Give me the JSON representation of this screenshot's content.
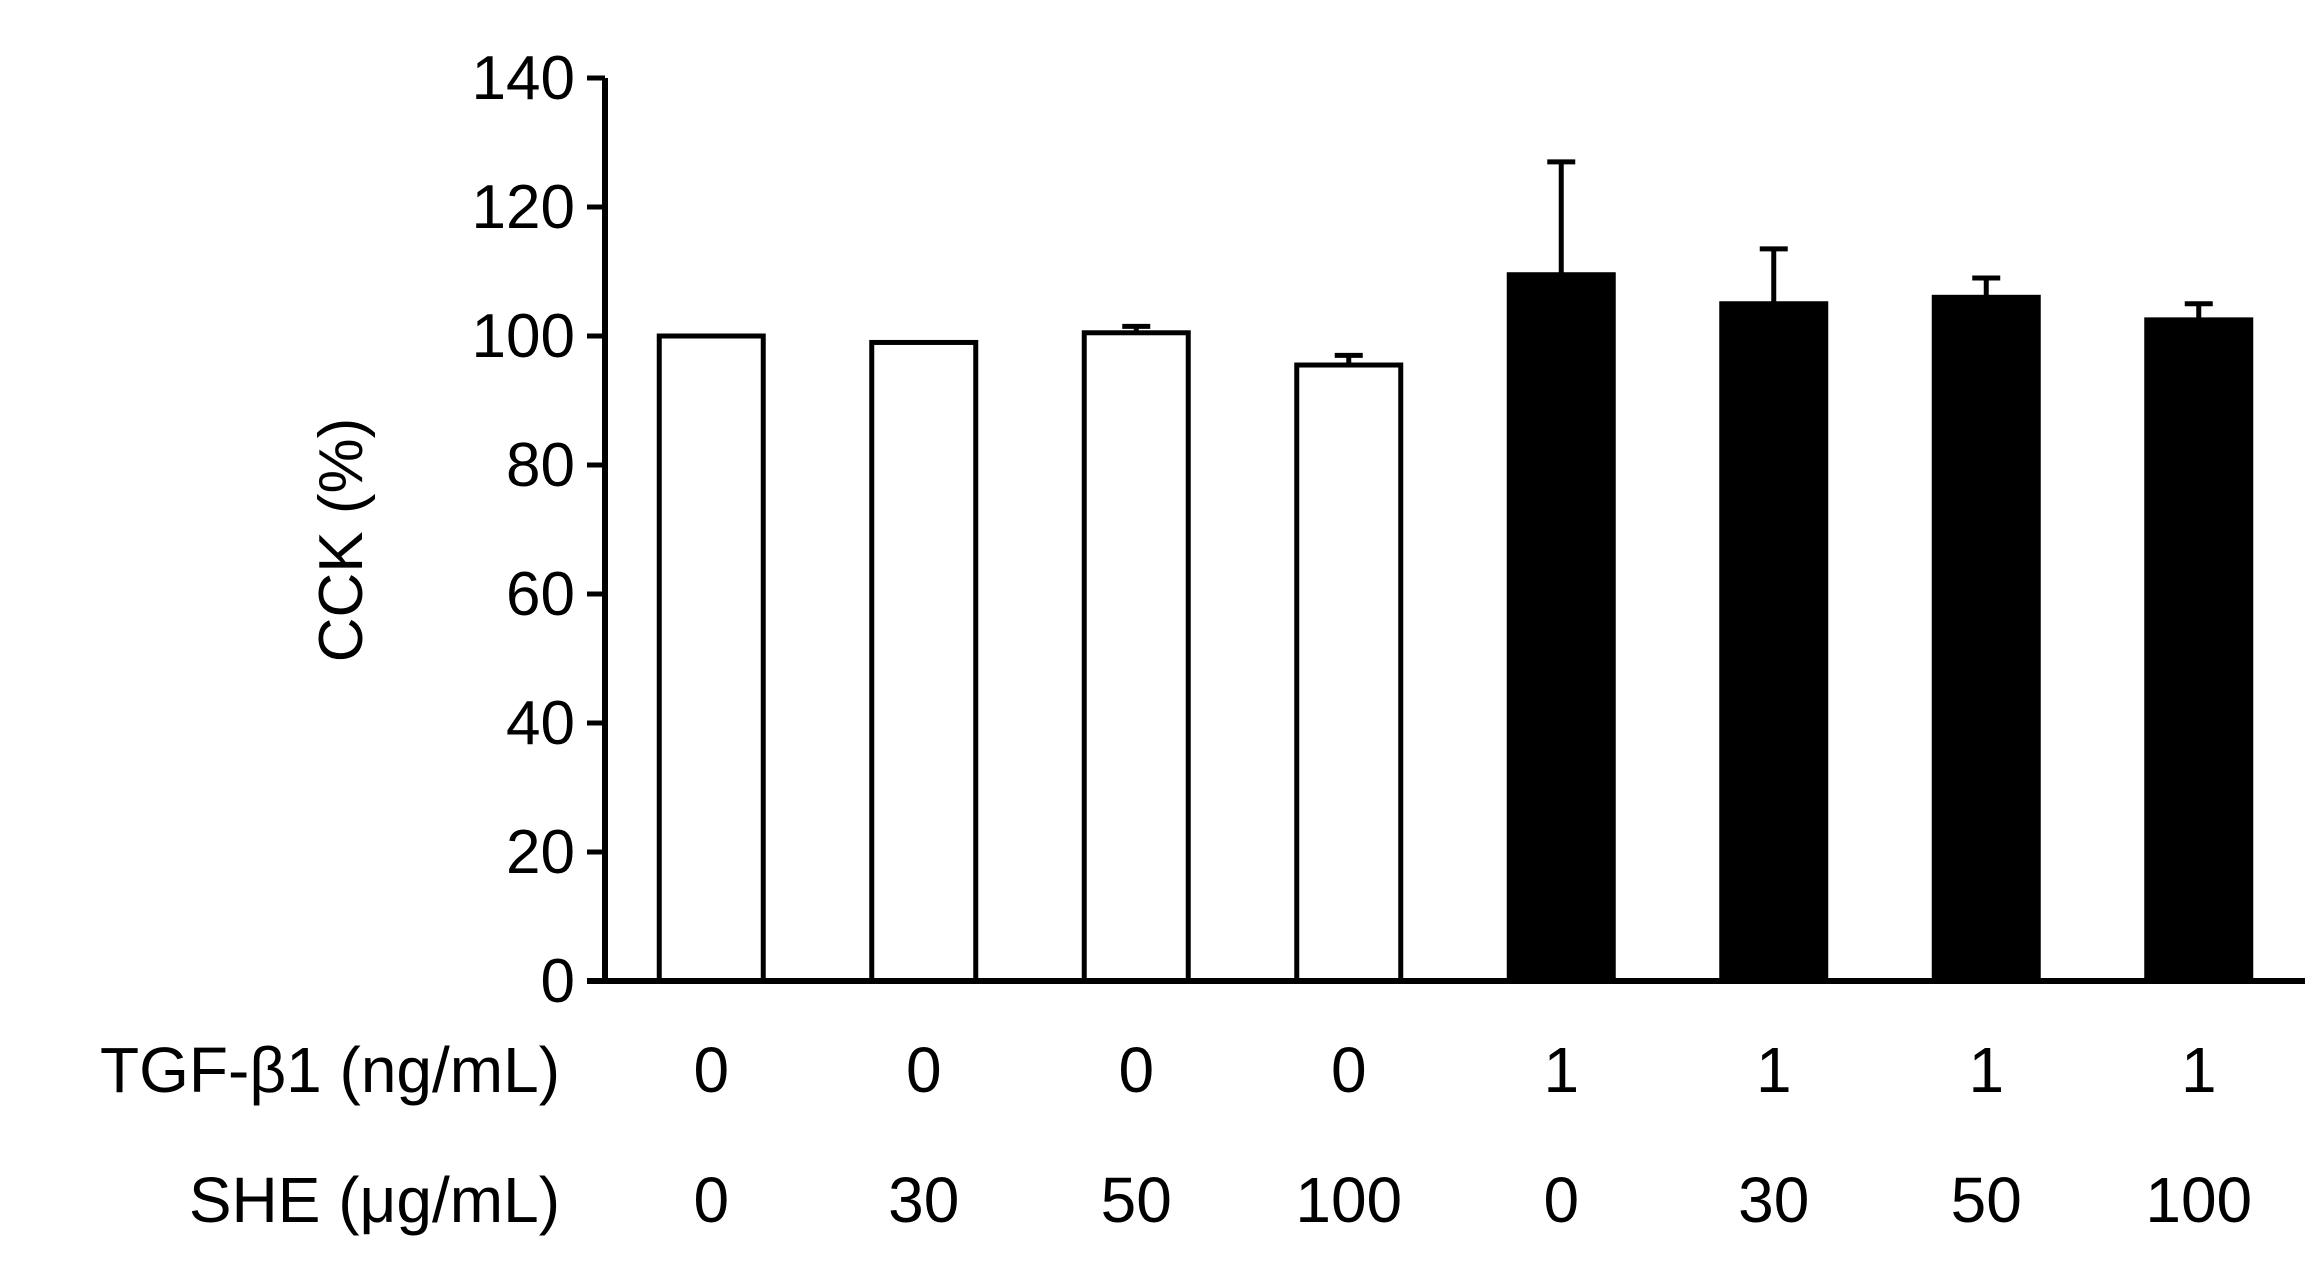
{
  "chart_data": {
    "type": "bar",
    "ylabel": "CCK (%)",
    "ylim": [
      0,
      140
    ],
    "yticks": [
      "0",
      "20",
      "40",
      "60",
      "80",
      "100",
      "120",
      "140"
    ],
    "grid": false,
    "legend": "none",
    "values": [
      100,
      99,
      100.5,
      95.5,
      109.5,
      105,
      106,
      102.5
    ],
    "errors": [
      0,
      0,
      1,
      1.5,
      17.5,
      8.5,
      3,
      2.5
    ],
    "fills": [
      "#ffffff",
      "#ffffff",
      "#ffffff",
      "#ffffff",
      "#000000",
      "#000000",
      "#000000",
      "#000000"
    ],
    "conditions": [
      {
        "label": "TGF-β1 (ng/mL)",
        "values": [
          "0",
          "0",
          "0",
          "0",
          "1",
          "1",
          "1",
          "1"
        ]
      },
      {
        "label": "SHE (μg/mL)",
        "values": [
          "0",
          "30",
          "50",
          "100",
          "0",
          "30",
          "50",
          "100"
        ]
      }
    ]
  }
}
